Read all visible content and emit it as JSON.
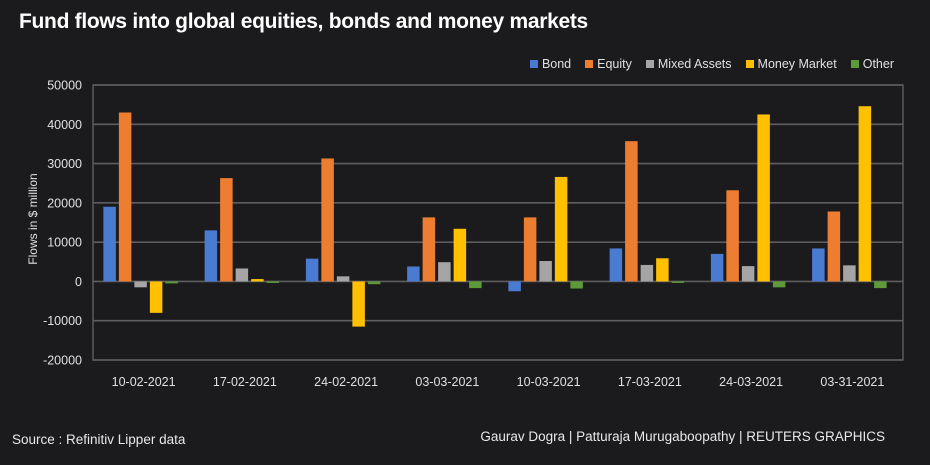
{
  "title": "Fund flows into global equities, bonds and money markets",
  "source": "Source : Refinitiv Lipper data",
  "credit": "Gaurav Dogra | Patturaja Murugaboopathy | REUTERS GRAPHICS",
  "legend": [
    {
      "name": "Bond",
      "color": "#4a7bd3"
    },
    {
      "name": "Equity",
      "color": "#ed7d31"
    },
    {
      "name": "Mixed Assets",
      "color": "#a5a5a5"
    },
    {
      "name": "Money Market",
      "color": "#ffc000"
    },
    {
      "name": "Other",
      "color": "#5f9a3a"
    }
  ],
  "chart_data": {
    "type": "bar",
    "title": "Fund flows into global equities, bonds and money markets",
    "xlabel": "",
    "ylabel": "Flows in $ million",
    "ylim": [
      -20000,
      50000
    ],
    "yticks": [
      -20000,
      -10000,
      0,
      10000,
      20000,
      30000,
      40000,
      50000
    ],
    "grid": true,
    "legend_position": "top-right",
    "categories": [
      "10-02-2021",
      "17-02-2021",
      "24-02-2021",
      "03-03-2021",
      "10-03-2021",
      "17-03-2021",
      "24-03-2021",
      "03-31-2021"
    ],
    "series": [
      {
        "name": "Bond",
        "color": "#4a7bd3",
        "values": [
          19000,
          13000,
          5800,
          3800,
          -2500,
          8400,
          7000,
          8400
        ]
      },
      {
        "name": "Equity",
        "color": "#ed7d31",
        "values": [
          43000,
          26300,
          31300,
          16300,
          16300,
          35700,
          23200,
          17800
        ]
      },
      {
        "name": "Mixed Assets",
        "color": "#a5a5a5",
        "values": [
          -1500,
          3300,
          1300,
          4900,
          5200,
          4200,
          3900,
          4100
        ]
      },
      {
        "name": "Money Market",
        "color": "#ffc000",
        "values": [
          -8000,
          600,
          -11500,
          13400,
          26600,
          5900,
          42500,
          44600
        ]
      },
      {
        "name": "Other",
        "color": "#5f9a3a",
        "values": [
          -500,
          -200,
          -700,
          -1700,
          -1800,
          -200,
          -1500,
          -1700
        ]
      }
    ]
  }
}
